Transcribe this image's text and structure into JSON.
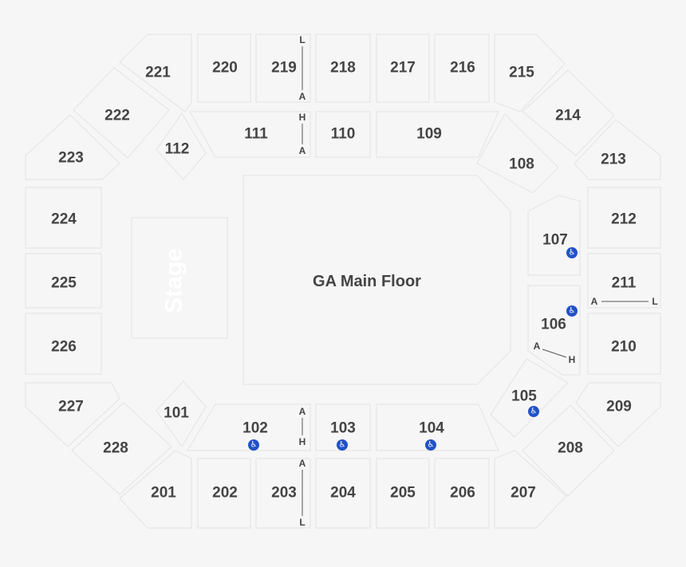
{
  "floor": {
    "label": "GA Main Floor"
  },
  "stage": {
    "label": "Stage"
  },
  "sections": {
    "s201": "201",
    "s202": "202",
    "s203": "203",
    "s204": "204",
    "s205": "205",
    "s206": "206",
    "s207": "207",
    "s208": "208",
    "s209": "209",
    "s210": "210",
    "s211": "211",
    "s212": "212",
    "s213": "213",
    "s214": "214",
    "s215": "215",
    "s216": "216",
    "s217": "217",
    "s218": "218",
    "s219": "219",
    "s220": "220",
    "s221": "221",
    "s222": "222",
    "s223": "223",
    "s224": "224",
    "s225": "225",
    "s226": "226",
    "s227": "227",
    "s228": "228",
    "s101": "101",
    "s102": "102",
    "s103": "103",
    "s104": "104",
    "s105": "105",
    "s106": "106",
    "s107": "107",
    "s108": "108",
    "s109": "109",
    "s110": "110",
    "s111": "111",
    "s112": "112"
  },
  "row_markers": {
    "top_upper": [
      "L",
      "A"
    ],
    "top_lower": [
      "H",
      "A"
    ],
    "bottom_lower": [
      "A",
      "H"
    ],
    "bottom_upper": [
      "A",
      "L"
    ],
    "right_211": [
      "A",
      "L"
    ],
    "right_106": [
      "A",
      "H"
    ]
  },
  "icons": {
    "accessible": "wheelchair-icon"
  }
}
